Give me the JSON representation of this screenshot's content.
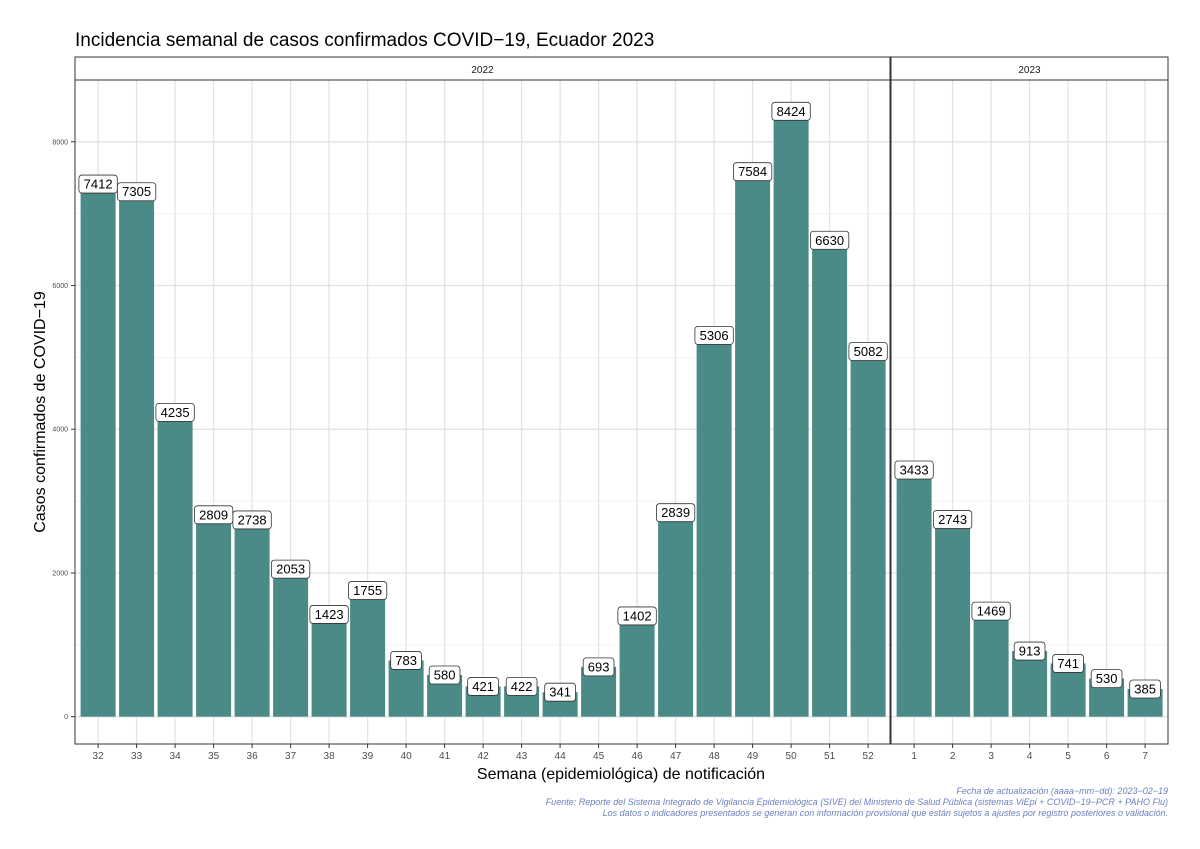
{
  "title": "Incidencia semanal de casos confirmados COVID−19, Ecuador 2023",
  "chart_data": {
    "type": "bar",
    "title": "Incidencia semanal de casos confirmados COVID−19, Ecuador 2023",
    "xlabel": "Semana (epidemiológica) de notificación",
    "ylabel": "Casos confirmados de COVID−19",
    "ylim": [
      -380,
      8860
    ],
    "yticks": [
      0,
      2000,
      4000,
      6000,
      8000
    ],
    "grid": true,
    "bar_color": "#4a8a87",
    "panels": [
      {
        "name": "2022",
        "categories": [
          "32",
          "33",
          "34",
          "35",
          "36",
          "37",
          "38",
          "39",
          "40",
          "41",
          "42",
          "43",
          "44",
          "45",
          "46",
          "47",
          "48",
          "49",
          "50",
          "51",
          "52"
        ],
        "values": [
          7412,
          7305,
          4235,
          2809,
          2738,
          2053,
          1423,
          1755,
          783,
          580,
          421,
          422,
          341,
          693,
          1402,
          2839,
          5306,
          7584,
          8424,
          6630,
          5082
        ]
      },
      {
        "name": "2023",
        "categories": [
          "1",
          "2",
          "3",
          "4",
          "5",
          "6",
          "7"
        ],
        "values": [
          3433,
          2743,
          1469,
          913,
          741,
          530,
          385
        ]
      }
    ]
  },
  "caption": {
    "line1": "Fecha de actualización (aaaa−mm−dd): 2023−02−19",
    "line2": "Fuente: Reporte del Sistema Integrado de Vigilancia Epidemiológica (SIVE) del Ministerio de Salud Pública (sistemas ViEpi + COVID−19−PCR + PAHO Flu)",
    "line3": "Los datos o indicadores presentados se generan con información provisional que están sujetos a ajustes por registro posteriores o validación."
  }
}
